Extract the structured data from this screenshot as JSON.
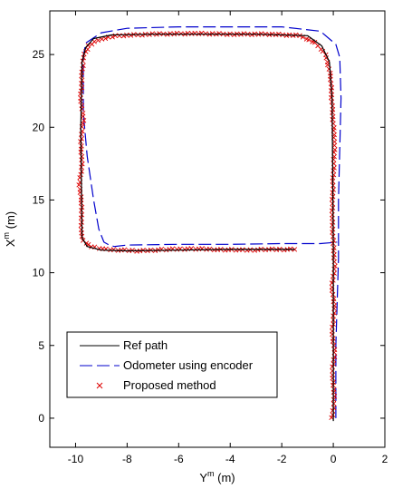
{
  "colors": {
    "ref_path": "#000000",
    "odometer": "#0000cc",
    "proposed": "#dd0000",
    "axis": "#000000",
    "background": "#ffffff"
  },
  "chart_data": {
    "type": "line",
    "xlabel_base": "Y",
    "xlabel_sup": "m",
    "xlabel_unit": " (m)",
    "ylabel_base": "X",
    "ylabel_sup": "m",
    "ylabel_unit": " (m)",
    "xlim": [
      -11,
      2
    ],
    "ylim": [
      -2,
      28
    ],
    "xticks": [
      -10,
      -8,
      -6,
      -4,
      -2,
      0,
      2
    ],
    "xtick_labels": [
      "-10",
      "-8",
      "-6",
      "-4",
      "-2",
      "0",
      "2"
    ],
    "yticks": [
      0,
      5,
      10,
      15,
      20,
      25
    ],
    "ytick_labels": [
      "0",
      "5",
      "10",
      "15",
      "20",
      "25"
    ],
    "grid": false,
    "legend_position": "bottom-left",
    "series": [
      {
        "name": "Ref path",
        "style": "solid",
        "x": [
          0,
          0,
          0,
          -0.05,
          -0.15,
          -0.45,
          -1.0,
          -3,
          -5,
          -7,
          -8.6,
          -9.3,
          -9.6,
          -9.75,
          -9.8,
          -9.75,
          -9.55,
          -9.0,
          -8,
          -6,
          -4,
          -2,
          -1.5
        ],
        "y": [
          -0.2,
          5,
          11.7,
          22,
          24.5,
          25.6,
          26.3,
          26.4,
          26.4,
          26.4,
          26.35,
          26.1,
          25.5,
          24.5,
          20,
          12.4,
          11.8,
          11.55,
          11.5,
          11.55,
          11.6,
          11.6,
          11.6
        ]
      },
      {
        "name": "Odometer using encoder",
        "style": "dashed",
        "x": [
          0.1,
          0.1,
          0.2,
          0.2,
          0.3,
          0.25,
          0.1,
          -0.5,
          -2,
          -4,
          -6,
          -8,
          -9.0,
          -9.6,
          -9.7,
          -9.7,
          -9.55,
          -9.3,
          -9.1,
          -8.9,
          -8.7,
          -8.5,
          -8,
          -6,
          -4,
          -2,
          -0.5,
          0.15
        ],
        "y": [
          0,
          5,
          11,
          15,
          22,
          24.8,
          25.7,
          26.6,
          26.9,
          26.9,
          26.9,
          26.8,
          26.5,
          25.8,
          24.9,
          21,
          18,
          15,
          13,
          12.1,
          11.9,
          11.8,
          11.9,
          11.95,
          11.95,
          12,
          12,
          12.1
        ]
      },
      {
        "name": "Proposed method",
        "style": "markers",
        "marker": "x",
        "x": [
          -0.05,
          0.05,
          -0.05,
          0.05,
          -0.05,
          0.05,
          -0.05,
          0.05,
          0.0,
          -0.05,
          0.0,
          0.05,
          -0.05,
          -0.1,
          -0.3,
          -0.7,
          -1.3,
          -2.5,
          -4,
          -5.5,
          -7,
          -8.3,
          -9.0,
          -9.5,
          -9.7,
          -9.75,
          -9.8,
          -9.7,
          -9.8,
          -9.75,
          -9.85,
          -9.75,
          -9.8,
          -9.7,
          -9.4,
          -8.8,
          -7.5,
          -6.5,
          -5.5,
          -4.5,
          -3.5,
          -2.5,
          -1.5
        ],
        "y": [
          0.0,
          1.5,
          3.0,
          4.5,
          6.0,
          7.5,
          9.0,
          10.5,
          12.0,
          14.0,
          16.5,
          19.0,
          21.5,
          23.5,
          25.0,
          25.8,
          26.3,
          26.4,
          26.4,
          26.45,
          26.4,
          26.3,
          26.1,
          25.6,
          24.8,
          23.5,
          22.0,
          20.5,
          19.0,
          17.5,
          16.0,
          14.5,
          13.0,
          12.2,
          11.8,
          11.6,
          11.5,
          11.6,
          11.65,
          11.6,
          11.55,
          11.6,
          11.6
        ]
      }
    ]
  }
}
